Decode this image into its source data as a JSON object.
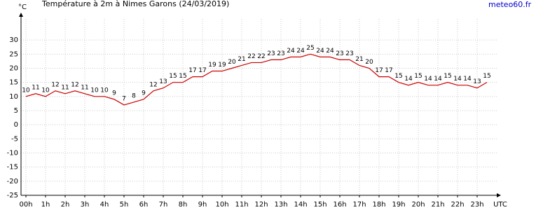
{
  "chart_data": {
    "type": "line",
    "title": "Température à 2m à Nimes Garons (24/03/2019)",
    "y_label": "°C",
    "x_label": "UTC",
    "source": "meteo60.fr",
    "x": [
      0,
      0.5,
      1,
      1.5,
      2,
      2.5,
      3,
      3.5,
      4,
      4.5,
      5,
      5.5,
      6,
      6.5,
      7,
      7.5,
      8,
      8.5,
      9,
      9.5,
      10,
      10.5,
      11,
      11.5,
      12,
      12.5,
      13,
      13.5,
      14,
      14.5,
      15,
      15.5,
      16,
      16.5,
      17,
      17.5,
      18,
      18.5,
      19,
      19.5,
      20,
      20.5,
      21,
      21.5,
      22,
      22.5,
      23,
      23.5
    ],
    "series": [
      {
        "color": "#cc0000",
        "values": [
          10,
          11,
          10,
          12,
          11,
          12,
          11,
          10,
          10,
          9,
          7,
          8,
          9,
          12,
          13,
          15,
          15,
          17,
          17,
          19,
          19,
          20,
          21,
          22,
          22,
          23,
          23,
          24,
          24,
          25,
          24,
          24,
          23,
          23,
          21,
          20,
          17,
          17,
          15,
          14,
          15,
          14,
          14,
          15,
          14,
          14,
          13,
          15
        ]
      }
    ],
    "xlim": [
      -0.25,
      24
    ],
    "xticks": [
      {
        "value": 0,
        "label": "00h"
      },
      {
        "value": 1,
        "label": "1h"
      },
      {
        "value": 2,
        "label": "2h"
      },
      {
        "value": 3,
        "label": "3h"
      },
      {
        "value": 4,
        "label": "4h"
      },
      {
        "value": 5,
        "label": "5h"
      },
      {
        "value": 6,
        "label": "6h"
      },
      {
        "value": 7,
        "label": "7h"
      },
      {
        "value": 8,
        "label": "8h"
      },
      {
        "value": 9,
        "label": "9h"
      },
      {
        "value": 10,
        "label": "10h"
      },
      {
        "value": 11,
        "label": "11h"
      },
      {
        "value": 12,
        "label": "12h"
      },
      {
        "value": 13,
        "label": "13h"
      },
      {
        "value": 14,
        "label": "14h"
      },
      {
        "value": 15,
        "label": "15h"
      },
      {
        "value": 16,
        "label": "16h"
      },
      {
        "value": 17,
        "label": "17h"
      },
      {
        "value": 18,
        "label": "18h"
      },
      {
        "value": 19,
        "label": "19h"
      },
      {
        "value": 20,
        "label": "20h"
      },
      {
        "value": 21,
        "label": "21h"
      },
      {
        "value": 22,
        "label": "22h"
      },
      {
        "value": 23,
        "label": "23h"
      }
    ],
    "ylim": [
      -25,
      35
    ],
    "yticks": [
      -25,
      -20,
      -15,
      -10,
      -5,
      0,
      5,
      10,
      15,
      20,
      25,
      30
    ],
    "grid": true
  }
}
